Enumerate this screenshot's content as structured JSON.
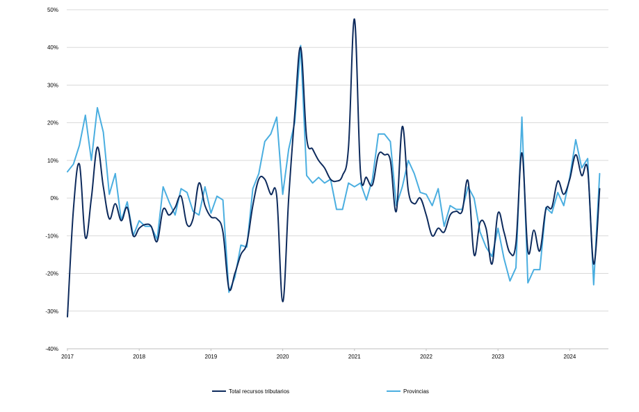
{
  "chart_data": {
    "type": "line",
    "title": "",
    "xlabel": "",
    "ylabel": "",
    "ylim": [
      -40,
      50
    ],
    "y_ticks": [
      "-40%",
      "-30%",
      "-20%",
      "-10%",
      "0%",
      "10%",
      "20%",
      "30%",
      "40%",
      "50%"
    ],
    "x_ticks": [
      "2017",
      "2018",
      "2019",
      "2020",
      "2021",
      "2022",
      "2023",
      "2024"
    ],
    "x_start_year": 2017,
    "grid": "horizontal",
    "legend": "bottom",
    "series": [
      {
        "name": "Total recursos tributarios",
        "color": "#0d2a5c",
        "values": [
          -31.5,
          -3,
          9,
          -10.5,
          0,
          13.5,
          3,
          -5.5,
          -1.5,
          -6,
          -2.5,
          -10,
          -8,
          -7,
          -7.5,
          -11.5,
          -3,
          -4.5,
          -2.5,
          0.5,
          -7,
          -5.5,
          4,
          -2,
          -5,
          -5.5,
          -9,
          -24,
          -20,
          -15,
          -12,
          -2,
          5,
          5,
          1,
          0.5,
          -27.5,
          0,
          22,
          40,
          16,
          13,
          10,
          8,
          5,
          4.5,
          6,
          13.5,
          47.5,
          7,
          5.5,
          3.5,
          11.5,
          11.5,
          10,
          -3.5,
          19,
          2,
          -1.5,
          0,
          -4.5,
          -10,
          -8,
          -9,
          -4.5,
          -3.5,
          -3.5,
          4.5,
          -15,
          -6.5,
          -8,
          -17.5,
          -4,
          -9,
          -14.5,
          -12,
          12,
          -14,
          -8.5,
          -14,
          -3,
          -2.5,
          4.5,
          1,
          5,
          11.5,
          6,
          7.5,
          -17.5,
          2.5
        ]
      },
      {
        "name": "Provincias",
        "color": "#4aaee0",
        "values": [
          7,
          9,
          14,
          22,
          10,
          24,
          17.5,
          1,
          6.5,
          -6,
          -1,
          -10,
          -6,
          -7.5,
          -7.5,
          -11,
          3,
          -1,
          -4.5,
          2.5,
          1.5,
          -3.5,
          -4.5,
          3,
          -4,
          0.5,
          -0.5,
          -25,
          -21,
          -12.5,
          -13,
          2.5,
          6.5,
          15,
          17,
          21.5,
          1,
          13,
          20,
          40.5,
          6,
          4,
          5.5,
          4,
          5,
          -3,
          -3,
          4,
          3,
          4,
          -0.5,
          5,
          17,
          17,
          15,
          -2,
          3,
          10,
          6.5,
          1.5,
          1,
          -2,
          2.5,
          -7.5,
          -2,
          -3,
          -3,
          3,
          0,
          -9,
          -13,
          -15.5,
          -8,
          -16,
          -22,
          -18.5,
          21.5,
          -22.5,
          -19,
          -19,
          -2.5,
          -4,
          1.5,
          -2,
          5.5,
          15.5,
          8,
          10.5,
          -23,
          6.5
        ]
      }
    ]
  }
}
